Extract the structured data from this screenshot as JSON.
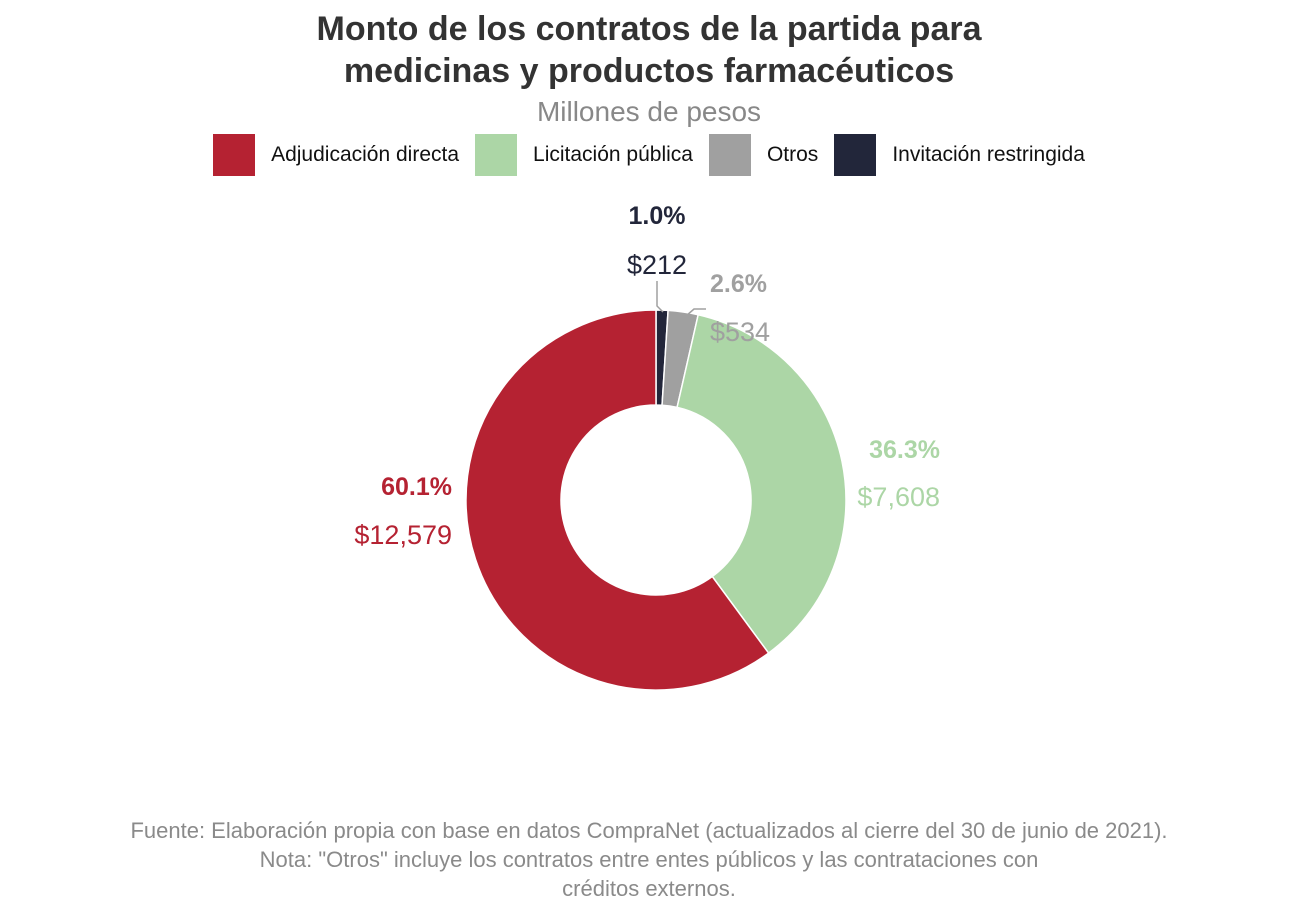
{
  "title_line1": "Monto de los contratos de la partida para",
  "title_line2": "medicinas y productos farmacéuticos",
  "subtitle": "Millones de pesos",
  "chart_data": {
    "type": "pie",
    "variant": "donut",
    "start": "12 o'clock, clockwise",
    "legend_position": "top",
    "slices": [
      {
        "label": "Invitación restringida",
        "value": 212,
        "percent": 1.0,
        "pct_label": "1.0%",
        "value_label": "$212",
        "color": "#22263a"
      },
      {
        "label": "Otros",
        "value": 534,
        "percent": 2.6,
        "pct_label": "2.6%",
        "value_label": "$534",
        "color": "#a0a0a0"
      },
      {
        "label": "Licitación pública",
        "value": 7608,
        "percent": 36.3,
        "pct_label": "36.3%",
        "value_label": "$7,608",
        "color": "#acd6a6"
      },
      {
        "label": "Adjudicación directa",
        "value": 12579,
        "percent": 60.1,
        "pct_label": "60.1%",
        "value_label": "$12,579",
        "color": "#b52232"
      }
    ]
  },
  "legend": [
    {
      "label": "Adjudicación directa",
      "color": "#b52232"
    },
    {
      "label": "Licitación pública",
      "color": "#acd6a6"
    },
    {
      "label": "Otros",
      "color": "#a0a0a0"
    },
    {
      "label": "Invitación restringida",
      "color": "#22263a"
    }
  ],
  "footer_line1": "Fuente: Elaboración propia con base en datos CompraNet (actualizados al cierre del 30 de junio de 2021).",
  "footer_line2": "Nota: \"Otros\" incluye los contratos entre entes públicos y las contrataciones con",
  "footer_line3": "créditos externos."
}
